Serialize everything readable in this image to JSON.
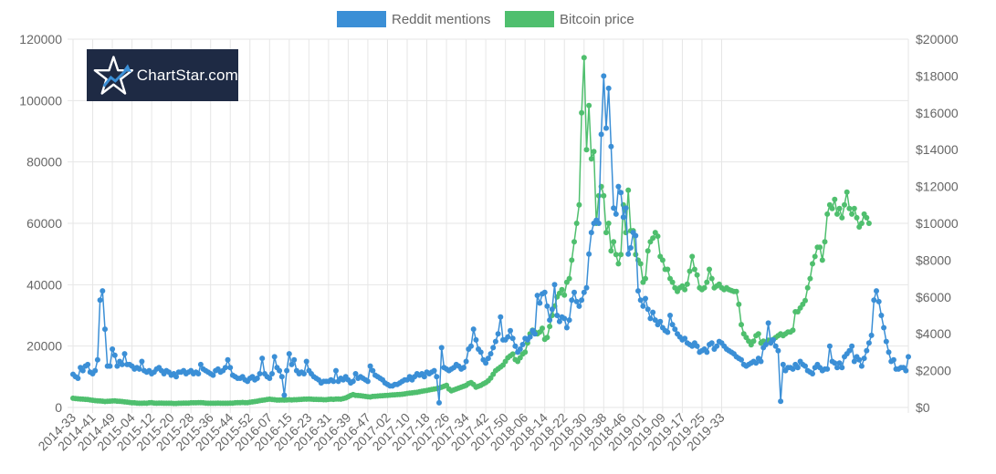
{
  "logo": {
    "text": "ChartStar.com"
  },
  "colors": {
    "reddit": "#3b8fd6",
    "bitcoin": "#4fbf6e",
    "grid": "#e6e6e6",
    "text": "#666666"
  },
  "chart_data": {
    "type": "line",
    "legend": [
      "Reddit mentions",
      "Bitcoin price"
    ],
    "legend_position": "top",
    "grid": true,
    "y_left": {
      "ticks": [
        "0",
        "20000",
        "40000",
        "60000",
        "80000",
        "100000",
        "120000"
      ],
      "range": [
        0,
        120000
      ]
    },
    "y_right": {
      "ticks": [
        "$0",
        "$2000",
        "$4000",
        "$6000",
        "$8000",
        "$10000",
        "$12000",
        "$14000",
        "$16000",
        "$18000",
        "$20000"
      ],
      "range": [
        0,
        20000
      ]
    },
    "x_tick_labels": [
      "2014-33",
      "2014-41",
      "2014-49",
      "2015-04",
      "2015-12",
      "2015-20",
      "2015-28",
      "2015-36",
      "2015-44",
      "2015-52",
      "2016-07",
      "2016-15",
      "2016-23",
      "2016-31",
      "2016-39",
      "2016-47",
      "2017-02",
      "2017-10",
      "2017-18",
      "2017-26",
      "2017-34",
      "2017-42",
      "2017-50",
      "2018-06",
      "2018-14",
      "2018-22",
      "2018-30",
      "2018-38",
      "2018-46",
      "2019-01",
      "2019-09",
      "2019-17",
      "2019-25",
      "2019-33"
    ],
    "series": [
      {
        "name": "Reddit mentions",
        "axis": "left",
        "values": [
          10800,
          10000,
          9500,
          13000,
          12000,
          13500,
          14000,
          11500,
          11000,
          12000,
          15500,
          35000,
          38000,
          25500,
          13500,
          13500,
          19000,
          17000,
          13500,
          15000,
          14000,
          17500,
          14000,
          14000,
          13500,
          12500,
          13000,
          12500,
          15000,
          12000,
          11500,
          12000,
          11000,
          11500,
          12500,
          13000,
          12000,
          11000,
          12000,
          11500,
          10500,
          11000,
          10000,
          11500,
          11500,
          12000,
          11000,
          11500,
          12000,
          11000,
          11500,
          11000,
          14000,
          12500,
          12000,
          11500,
          11000,
          10500,
          12000,
          12500,
          11500,
          12000,
          13000,
          15500,
          13000,
          10500,
          10000,
          9500,
          9500,
          10000,
          9000,
          8500,
          9500,
          10000,
          9000,
          9500,
          11000,
          16000,
          11000,
          10000,
          9500,
          11000,
          16500,
          13000,
          12000,
          10000,
          4000,
          12000,
          17500,
          14000,
          15500,
          12000,
          11000,
          11500,
          11000,
          15000,
          12000,
          11000,
          10000,
          9500,
          9000,
          8000,
          8500,
          8500,
          8500,
          9000,
          8500,
          12000,
          8500,
          9500,
          9000,
          10000,
          9000,
          8000,
          8500,
          11000,
          9500,
          10000,
          9500,
          9000,
          8500,
          13500,
          12000,
          10500,
          10000,
          9500,
          9000,
          8000,
          7500,
          7000,
          7000,
          7500,
          7500,
          8000,
          8500,
          9000,
          9000,
          10000,
          9000,
          10000,
          11000,
          10500,
          11000,
          10000,
          11500,
          11000,
          11500,
          12000,
          10000,
          1500,
          19500,
          13000,
          12500,
          12000,
          12500,
          13000,
          14000,
          13500,
          12500,
          13000,
          15000,
          19000,
          20000,
          25500,
          22000,
          19000,
          18000,
          15500,
          14500,
          16000,
          17500,
          19500,
          21500,
          24000,
          29500,
          22000,
          22000,
          23000,
          25000,
          22500,
          20000,
          18000,
          19000,
          20500,
          22500,
          22000,
          23000,
          25000,
          24000,
          36500,
          34000,
          37000,
          37500,
          33000,
          28500,
          32000,
          40000,
          30000,
          28000,
          29500,
          29000,
          26000,
          28500,
          35000,
          37500,
          34500,
          33000,
          35000,
          37500,
          39000,
          50000,
          57000,
          60000,
          61000,
          60000,
          89000,
          108000,
          91000,
          104000,
          85000,
          65000,
          63000,
          72000,
          70000,
          62000,
          65000,
          50000,
          52000,
          57000,
          56000,
          38000,
          35000,
          33000,
          35500,
          32000,
          29000,
          31000,
          28500,
          27000,
          28000,
          26000,
          25000,
          24500,
          30000,
          27000,
          25500,
          24000,
          23000,
          22000,
          22500,
          21000,
          20500,
          20000,
          21000,
          20000,
          18000,
          18500,
          19000,
          18000,
          20500,
          21000,
          19000,
          20000,
          21500,
          21000,
          20000,
          19000,
          18500,
          18000,
          17500,
          16500,
          16000,
          15500,
          14000,
          13500,
          14000,
          14500,
          15000,
          14500,
          16000,
          15000,
          19500,
          20500,
          27500,
          21000,
          22000,
          20000,
          18500,
          2000,
          14000,
          12000,
          13000,
          13000,
          12500,
          14000,
          13000,
          15000,
          14000,
          13500,
          12000,
          11500,
          11000,
          13000,
          14000,
          13000,
          12000,
          12500,
          12500,
          20000,
          15000,
          14500,
          13000,
          14500,
          13000,
          16500,
          17500,
          18500,
          20000,
          15000,
          16500,
          15500,
          13500,
          16000,
          18500,
          21000,
          23500,
          35000,
          38000,
          34500,
          30000,
          26000,
          21500,
          18000,
          15000,
          15500,
          12500,
          12500,
          13000,
          13000,
          12000,
          16500
        ]
      },
      {
        "name": "Bitcoin price",
        "axis": "right",
        "values": [
          500,
          480,
          470,
          460,
          450,
          440,
          430,
          410,
          390,
          370,
          360,
          350,
          340,
          320,
          330,
          340,
          350,
          360,
          340,
          330,
          320,
          300,
          290,
          270,
          250,
          250,
          240,
          230,
          230,
          240,
          230,
          250,
          260,
          240,
          230,
          240,
          240,
          230,
          230,
          230,
          230,
          220,
          220,
          230,
          230,
          240,
          240,
          240,
          250,
          250,
          250,
          260,
          260,
          250,
          240,
          230,
          230,
          230,
          230,
          240,
          230,
          230,
          230,
          230,
          240,
          240,
          250,
          260,
          260,
          270,
          260,
          260,
          280,
          300,
          320,
          340,
          370,
          390,
          410,
          430,
          450,
          430,
          420,
          400,
          400,
          410,
          400,
          410,
          420,
          410,
          420,
          420,
          430,
          440,
          450,
          450,
          460,
          450,
          440,
          440,
          430,
          430,
          420,
          420,
          440,
          450,
          440,
          460,
          460,
          450,
          480,
          520,
          580,
          650,
          700,
          660,
          650,
          640,
          620,
          600,
          580,
          570,
          600,
          610,
          620,
          630,
          640,
          650,
          660,
          670,
          680,
          690,
          700,
          710,
          720,
          740,
          760,
          780,
          790,
          810,
          820,
          850,
          880,
          900,
          920,
          950,
          980,
          1000,
          1020,
          1050,
          1100,
          1150,
          1200,
          1000,
          900,
          950,
          1000,
          1050,
          1100,
          1150,
          1200,
          1300,
          1350,
          1250,
          1100,
          1150,
          1200,
          1280,
          1350,
          1450,
          1600,
          1800,
          2000,
          2100,
          2200,
          2300,
          2500,
          2700,
          2800,
          2900,
          2600,
          2500,
          2700,
          2900,
          3000,
          3500,
          4000,
          4200,
          4100,
          4000,
          4100,
          4300,
          3700,
          3800,
          4400,
          5000,
          5500,
          6000,
          6200,
          6400,
          6100,
          6800,
          7000,
          8000,
          9000,
          10000,
          11000,
          16000,
          19000,
          14000,
          16400,
          13500,
          13900,
          10000,
          11500,
          12000,
          11500,
          9500,
          10000,
          8500,
          9000,
          8300,
          7800,
          8300,
          11000,
          9500,
          11800,
          9600,
          9600,
          8300,
          8000,
          7800,
          6800,
          7000,
          8500,
          9000,
          9200,
          9500,
          9300,
          8200,
          8000,
          7500,
          7500,
          7000,
          6800,
          6500,
          6300,
          6500,
          6600,
          6400,
          6700,
          7400,
          8200,
          7500,
          7200,
          6500,
          6400,
          6500,
          6800,
          7500,
          7000,
          6500,
          6600,
          6700,
          6500,
          6400,
          6500,
          6400,
          6350,
          6300,
          6300,
          5600,
          4500,
          4000,
          3800,
          3600,
          3400,
          3600,
          3900,
          4000,
          3500,
          3600,
          3500,
          3650,
          3600,
          3700,
          3800,
          3900,
          4000,
          3900,
          4000,
          4100,
          4100,
          4200,
          5200,
          5200,
          5400,
          5600,
          5800,
          6500,
          7000,
          7800,
          8200,
          8700,
          8700,
          8000,
          9000,
          10500,
          11000,
          10800,
          11300,
          10500,
          10800,
          10300,
          11000,
          11700,
          10800,
          10500,
          10800,
          10300,
          9800,
          10000,
          10500,
          10300,
          10000
        ]
      }
    ]
  }
}
